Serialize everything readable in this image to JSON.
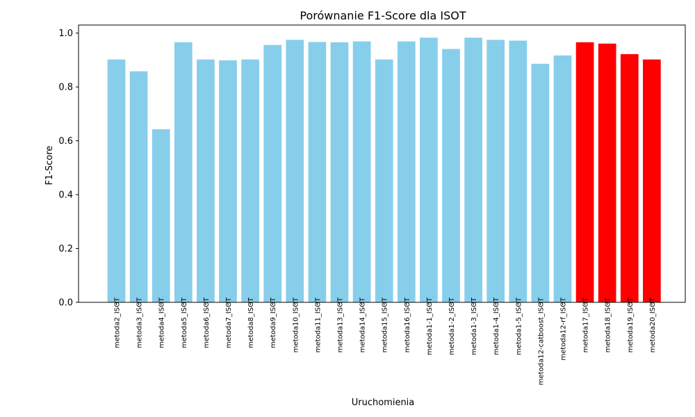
{
  "chart_data": {
    "type": "bar",
    "title": "Porównanie F1-Score dla ISOT",
    "xlabel": "Uruchomienia",
    "ylabel": "F1-Score",
    "ylim": [
      0,
      1.03
    ],
    "yticks": [
      "0.0",
      "0.2",
      "0.4",
      "0.6",
      "0.8",
      "1.0"
    ],
    "grid": false,
    "colors": {
      "default": "#87ceeb",
      "highlight": "#ff0000"
    },
    "categories": [
      "metoda2_ISOT",
      "metoda3_ISOT",
      "metoda4_ISOT",
      "metoda5_ISOT",
      "metoda6_ISOT",
      "metoda7_ISOT",
      "metoda8_ISOT",
      "metoda9_ISOT",
      "metoda10_ISOT",
      "metoda11_ISOT",
      "metoda13_ISOT",
      "metoda14_ISOT",
      "metoda15_ISOT",
      "metoda16_ISOT",
      "metoda1-1_ISOT",
      "metoda1-2_ISOT",
      "metoda1-3_ISOT",
      "metoda1-4_ISOT",
      "metoda1-5_ISOT",
      "metoda12-catboost_ISOT",
      "metoda12-rf_ISOT",
      "metoda17_ISOT",
      "metoda18_ISOT",
      "metoda19_ISOT",
      "metoda20_ISOT"
    ],
    "values": [
      0.902,
      0.858,
      0.643,
      0.966,
      0.902,
      0.899,
      0.902,
      0.956,
      0.975,
      0.967,
      0.966,
      0.969,
      0.902,
      0.969,
      0.983,
      0.941,
      0.983,
      0.975,
      0.972,
      0.886,
      0.917,
      0.966,
      0.961,
      0.922,
      0.902
    ],
    "highlighted": [
      "metoda17_ISOT",
      "metoda18_ISOT",
      "metoda19_ISOT",
      "metoda20_ISOT"
    ]
  }
}
